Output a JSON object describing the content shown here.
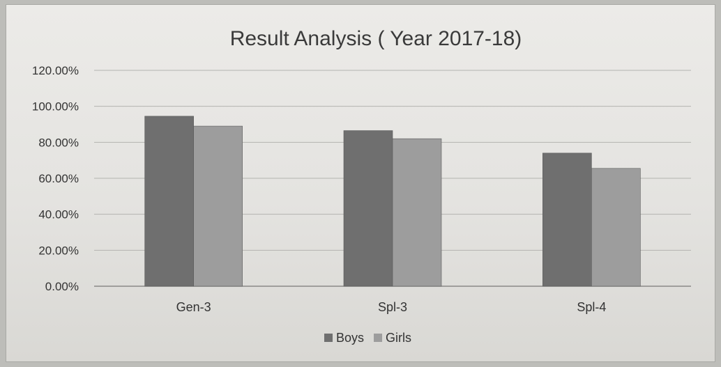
{
  "chart_data": {
    "type": "bar",
    "title": "Result Analysis ( Year 2017-18)",
    "categories": [
      "Gen-3",
      "Spl-3",
      "Spl-4"
    ],
    "series": [
      {
        "name": "Boys",
        "values": [
          94.5,
          86.5,
          74.0
        ],
        "color": "#6f6f6f"
      },
      {
        "name": "Girls",
        "values": [
          89.0,
          82.0,
          65.5
        ],
        "color": "#9d9d9d"
      }
    ],
    "yticks": [
      "0.00%",
      "20.00%",
      "40.00%",
      "60.00%",
      "80.00%",
      "100.00%",
      "120.00%"
    ],
    "ylim": [
      0,
      120
    ],
    "grid": true,
    "legend": "bottom"
  }
}
